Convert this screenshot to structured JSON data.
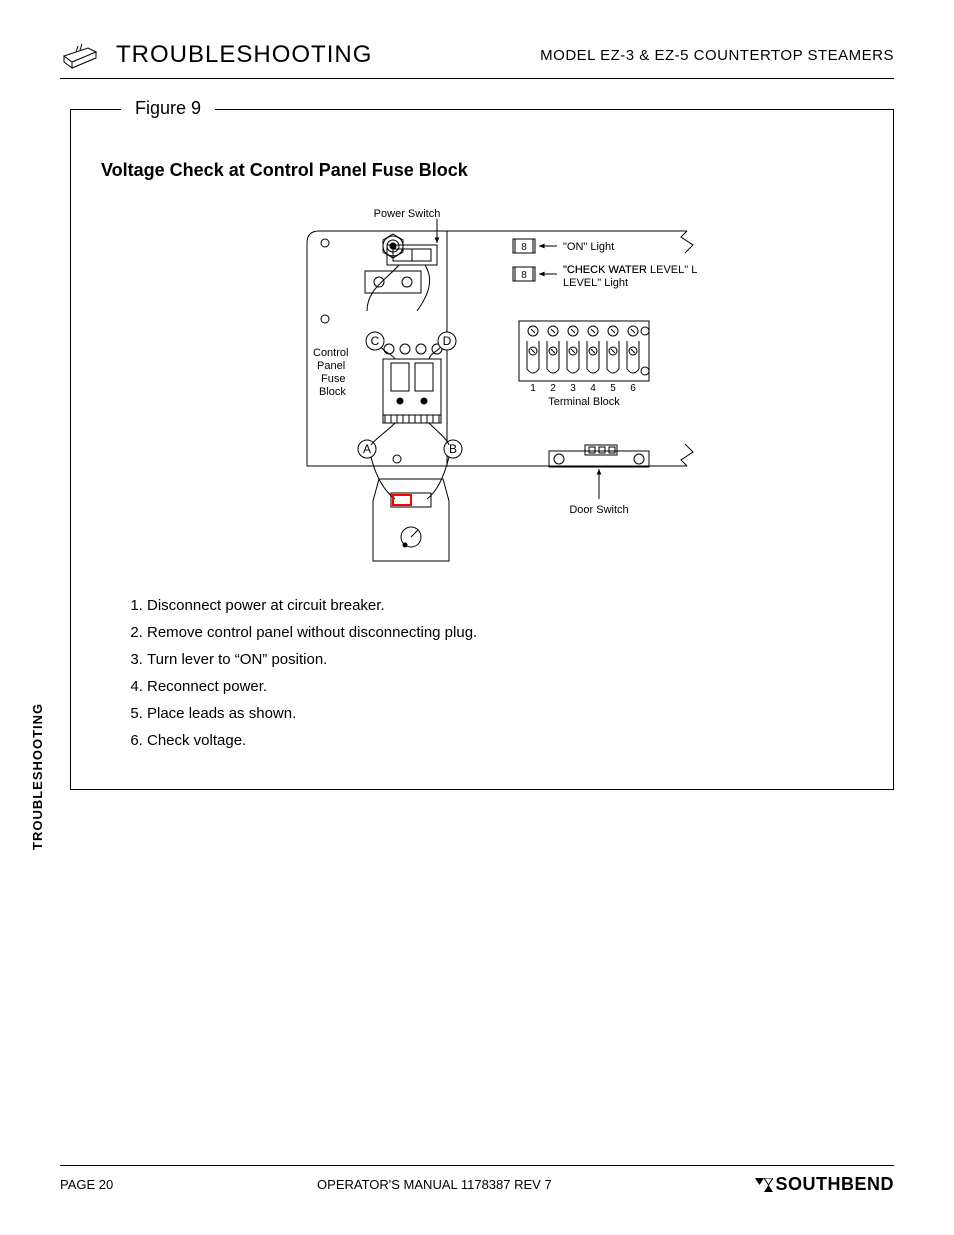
{
  "header": {
    "section": "TROUBLESHOOTING",
    "model": "MODEL EZ-3 & EZ-5 COUNTERTOP STEAMERS"
  },
  "figure": {
    "label": "Figure 9",
    "title": "Voltage Check at Control Panel Fuse Block",
    "diagram": {
      "labels": {
        "power_switch": "Power Switch",
        "on_light": "\"ON\" Light",
        "check_water": "\"CHECK WATER LEVEL\" Light",
        "control_fuse": "Control Panel Fuse Block",
        "terminal_block": "Terminal Block",
        "door_switch": "Door Switch",
        "A": "A",
        "B": "B",
        "C": "C",
        "D": "D"
      },
      "terminal_numbers": [
        "1",
        "2",
        "3",
        "4",
        "5",
        "6"
      ],
      "colors": {
        "stroke": "#000000",
        "bg": "#ffffff",
        "red": "#ff0000"
      },
      "stroke_width": 1,
      "font_label": 11,
      "font_node": 12
    },
    "steps": [
      "Disconnect power at circuit breaker.",
      "Remove control panel without disconnecting plug.",
      "Turn lever to “ON” position.",
      "Reconnect power.",
      "Place leads as shown.",
      "Check voltage."
    ]
  },
  "side_tab": "TROUBLESHOOTING",
  "footer": {
    "page": "PAGE 20",
    "manual": "OPERATOR'S MANUAL 1178387 REV 7",
    "brand": "SOUTHBEND"
  }
}
